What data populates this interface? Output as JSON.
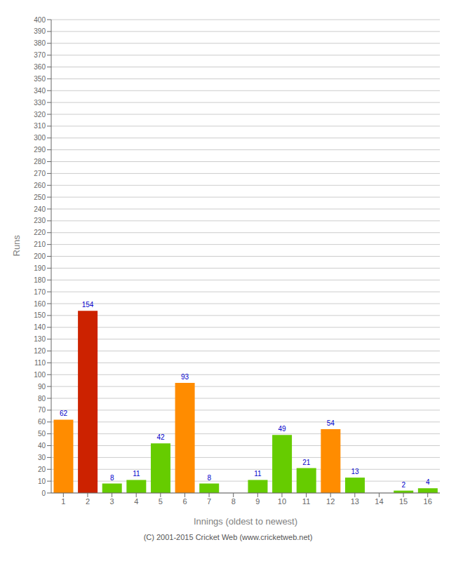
{
  "chart_data": {
    "type": "bar",
    "categories": [
      "1",
      "2",
      "3",
      "4",
      "5",
      "6",
      "7",
      "8",
      "9",
      "10",
      "11",
      "12",
      "13",
      "14",
      "15",
      "16"
    ],
    "values": [
      62,
      154,
      8,
      11,
      42,
      93,
      8,
      0,
      11,
      49,
      21,
      54,
      13,
      0,
      2,
      4
    ],
    "colors": [
      "#ff8c00",
      "#cc2200",
      "#66cc00",
      "#66cc00",
      "#66cc00",
      "#ff8c00",
      "#66cc00",
      "#66cc00",
      "#66cc00",
      "#66cc00",
      "#66cc00",
      "#ff8c00",
      "#66cc00",
      "#66cc00",
      "#66cc00",
      "#66cc00"
    ],
    "x_label": "Innings (oldest to newest)",
    "y_label": "Runs",
    "ylim": [
      0,
      400
    ],
    "yticks": [
      0,
      10,
      20,
      30,
      40,
      50,
      60,
      70,
      80,
      90,
      100,
      110,
      120,
      130,
      140,
      150,
      160,
      170,
      180,
      190,
      200,
      210,
      220,
      230,
      240,
      250,
      260,
      270,
      280,
      290,
      300,
      310,
      320,
      330,
      340,
      350,
      360,
      370,
      380,
      390,
      400
    ],
    "grid": true,
    "data_labels": true,
    "annotations": [
      "(C) 2001-2015 Cricket Web (www.cricketweb.net)"
    ]
  }
}
